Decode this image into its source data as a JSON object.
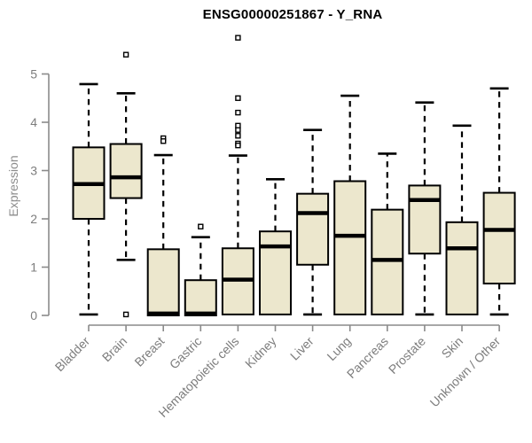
{
  "chart_data": {
    "type": "boxplot",
    "title": "ENSG00000251867 - Y_RNA",
    "xlabel": "",
    "ylabel": "Expression",
    "ylim": [
      0,
      5
    ],
    "yticks": [
      0,
      1,
      2,
      3,
      4,
      5
    ],
    "grid": false,
    "legend": "none",
    "categories": [
      "Bladder",
      "Brain",
      "Breast",
      "Gastric",
      "Hematopoietic cells",
      "Kidney",
      "Liver",
      "Lung",
      "Pancreas",
      "Prostate",
      "Skin",
      "Unknown / Other"
    ],
    "series": [
      {
        "category": "Bladder",
        "whisker_low": 0.02,
        "q1": 2.0,
        "median": 2.72,
        "q3": 3.48,
        "whisker_high": 4.79,
        "outliers": []
      },
      {
        "category": "Brain",
        "whisker_low": 1.15,
        "q1": 2.43,
        "median": 2.86,
        "q3": 3.55,
        "whisker_high": 4.6,
        "outliers": [
          5.4,
          0.02
        ]
      },
      {
        "category": "Breast",
        "whisker_low": 0.0,
        "q1": 0.0,
        "median": 0.04,
        "q3": 1.37,
        "whisker_high": 3.32,
        "outliers": [
          3.67,
          3.61
        ]
      },
      {
        "category": "Gastric",
        "whisker_low": 0.0,
        "q1": 0.0,
        "median": 0.04,
        "q3": 0.73,
        "whisker_high": 1.62,
        "outliers": [
          1.84
        ]
      },
      {
        "category": "Hematopoietic cells",
        "whisker_low": 0.02,
        "q1": 0.02,
        "median": 0.74,
        "q3": 1.39,
        "whisker_high": 3.31,
        "outliers": [
          5.75,
          4.5,
          4.2,
          3.93,
          3.84,
          3.72,
          3.56,
          3.52
        ]
      },
      {
        "category": "Kidney",
        "whisker_low": 0.02,
        "q1": 0.02,
        "median": 1.43,
        "q3": 1.74,
        "whisker_high": 2.82,
        "outliers": []
      },
      {
        "category": "Liver",
        "whisker_low": 0.02,
        "q1": 1.05,
        "median": 2.12,
        "q3": 2.52,
        "whisker_high": 3.84,
        "outliers": []
      },
      {
        "category": "Lung",
        "whisker_low": 0.02,
        "q1": 0.02,
        "median": 1.65,
        "q3": 2.78,
        "whisker_high": 4.55,
        "outliers": []
      },
      {
        "category": "Pancreas",
        "whisker_low": 0.02,
        "q1": 0.02,
        "median": 1.15,
        "q3": 2.19,
        "whisker_high": 3.35,
        "outliers": []
      },
      {
        "category": "Prostate",
        "whisker_low": 0.02,
        "q1": 1.28,
        "median": 2.39,
        "q3": 2.69,
        "whisker_high": 4.41,
        "outliers": []
      },
      {
        "category": "Skin",
        "whisker_low": 0.02,
        "q1": 0.02,
        "median": 1.39,
        "q3": 1.93,
        "whisker_high": 3.93,
        "outliers": []
      },
      {
        "category": "Unknown / Other",
        "whisker_low": 0.02,
        "q1": 0.66,
        "median": 1.77,
        "q3": 2.54,
        "whisker_high": 4.7,
        "outliers": []
      }
    ],
    "colors": {
      "box_fill": "#ECE7CD",
      "box_stroke": "#000000",
      "median": "#000000",
      "whisker": "#000000",
      "outlier_fill": "#ffffff",
      "outlier_stroke": "#000000",
      "axis": "#8a8a8a",
      "tick_label": "#7d7d7d",
      "axis_label": "#8c8c8c",
      "title": "#000000",
      "background": "#ffffff"
    }
  }
}
